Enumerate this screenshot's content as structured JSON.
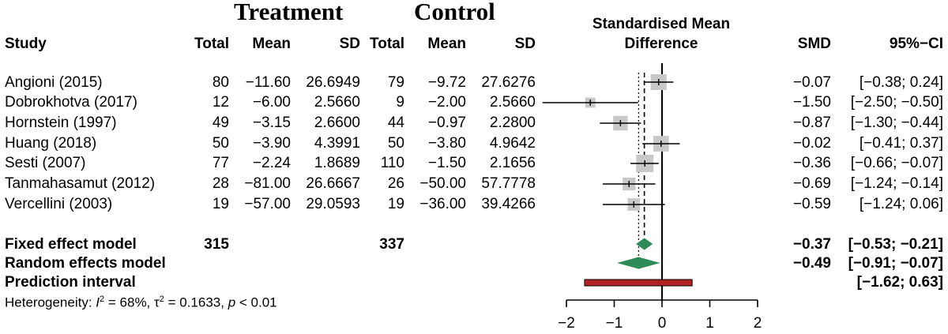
{
  "headers": {
    "group_treatment": "Treatment",
    "group_control": "Control",
    "study": "Study",
    "total_t": "Total",
    "mean_t": "Mean",
    "sd_t": "SD",
    "total_c": "Total",
    "mean_c": "Mean",
    "sd_c": "SD",
    "plot_title_1": "Standardised Mean",
    "plot_title_2": "Difference",
    "smd": "SMD",
    "ci": "95%−CI"
  },
  "studies": [
    {
      "name": "Angioni (2015)",
      "total_t": "80",
      "mean_t": "−11.60",
      "sd_t": "26.6949",
      "total_c": "79",
      "mean_c": "−9.72",
      "sd_c": "27.6276",
      "smd_text": "−0.07",
      "ci_text": "[−0.38;  0.24]"
    },
    {
      "name": "Dobrokhotva (2017)",
      "total_t": "12",
      "mean_t": "−6.00",
      "sd_t": "2.5660",
      "total_c": "9",
      "mean_c": "−2.00",
      "sd_c": "2.5660",
      "smd_text": "−1.50",
      "ci_text": "[−2.50; −0.50]"
    },
    {
      "name": "Hornstein (1997)",
      "total_t": "49",
      "mean_t": "−3.15",
      "sd_t": "2.6600",
      "total_c": "44",
      "mean_c": "−0.97",
      "sd_c": "2.2800",
      "smd_text": "−0.87",
      "ci_text": "[−1.30; −0.44]"
    },
    {
      "name": "Huang (2018)",
      "total_t": "50",
      "mean_t": "−3.90",
      "sd_t": "4.3991",
      "total_c": "50",
      "mean_c": "−3.80",
      "sd_c": "4.9642",
      "smd_text": "−0.02",
      "ci_text": "[−0.41;  0.37]"
    },
    {
      "name": "Sesti (2007)",
      "total_t": "77",
      "mean_t": "−2.24",
      "sd_t": "1.8689",
      "total_c": "110",
      "mean_c": "−1.50",
      "sd_c": "2.1656",
      "smd_text": "−0.36",
      "ci_text": "[−0.66; −0.07]"
    },
    {
      "name": "Tanmahasamut (2012)",
      "total_t": "28",
      "mean_t": "−81.00",
      "sd_t": "26.6667",
      "total_c": "26",
      "mean_c": "−50.00",
      "sd_c": "57.7778",
      "smd_text": "−0.69",
      "ci_text": "[−1.24; −0.14]"
    },
    {
      "name": "Vercellini (2003)",
      "total_t": "19",
      "mean_t": "−57.00",
      "sd_t": "29.0593",
      "total_c": "19",
      "mean_c": "−36.00",
      "sd_c": "39.4266",
      "smd_text": "−0.59",
      "ci_text": "[−1.24;  0.06]"
    }
  ],
  "summary": {
    "fixed": {
      "label": "Fixed effect model",
      "total_t": "315",
      "total_c": "337",
      "smd_text": "−0.37",
      "ci_text": "[−0.53; −0.21]"
    },
    "random": {
      "label": "Random effects model",
      "smd_text": "−0.49",
      "ci_text": "[−0.91; −0.07]"
    },
    "prediction": {
      "label": "Prediction interval",
      "ci_text": "[−1.62;  0.63]"
    }
  },
  "heterogeneity": {
    "prefix": "Heterogeneity: ",
    "i_sym": "I",
    "i_sup": "2",
    "i_val": " = 68%, ",
    "tau_sym": "τ",
    "tau_sup": "2",
    "tau_val": " = 0.1633, ",
    "p_sym": "p",
    "p_val": " < 0.01"
  },
  "chart_data": {
    "type": "scatter",
    "title": "Standardised Mean Difference",
    "xlim": [
      -2,
      2
    ],
    "x_ticks": [
      -2,
      -1,
      0,
      1,
      2
    ],
    "x_tick_labels": [
      "−2",
      "−1",
      "0",
      "1",
      "2"
    ],
    "null_line": 0,
    "fixed_line": -0.37,
    "random_line": -0.49,
    "studies": [
      {
        "smd": -0.07,
        "lower": -0.38,
        "upper": 0.24,
        "weight": 0.75
      },
      {
        "smd": -1.5,
        "lower": -2.5,
        "upper": -0.5,
        "weight": 0.12
      },
      {
        "smd": -0.87,
        "lower": -1.3,
        "upper": -0.44,
        "weight": 0.55
      },
      {
        "smd": -0.02,
        "lower": -0.41,
        "upper": 0.37,
        "weight": 0.7
      },
      {
        "smd": -0.36,
        "lower": -0.66,
        "upper": -0.07,
        "weight": 1.0
      },
      {
        "smd": -0.69,
        "lower": -1.24,
        "upper": -0.14,
        "weight": 0.35
      },
      {
        "smd": -0.59,
        "lower": -1.24,
        "upper": 0.06,
        "weight": 0.3
      }
    ],
    "fixed": {
      "smd": -0.37,
      "lower": -0.53,
      "upper": -0.21
    },
    "random": {
      "smd": -0.49,
      "lower": -0.91,
      "upper": -0.07
    },
    "prediction": {
      "lower": -1.62,
      "upper": 0.63
    },
    "colors": {
      "box": "#c8c8c8",
      "diamond": "#2e8b57",
      "prediction": "#b22222",
      "line": "#000000"
    }
  }
}
